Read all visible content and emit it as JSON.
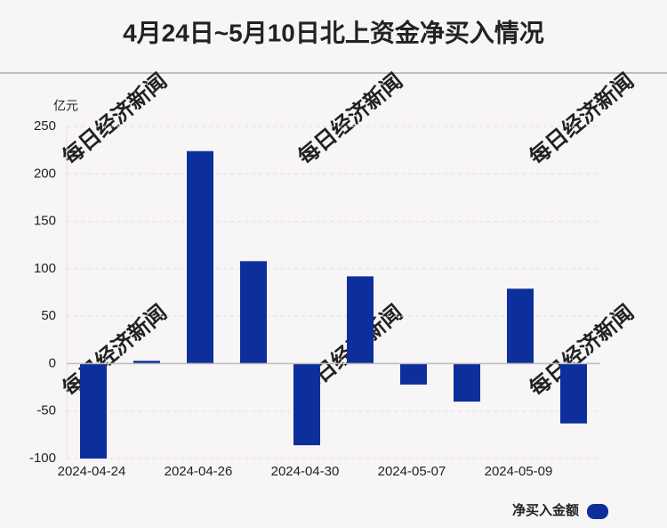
{
  "chart_data": {
    "type": "bar",
    "title": "4月24日~5月10日北上资金净买入情况",
    "y_unit": "亿元",
    "watermark": "每日经济新闻",
    "categories": [
      "2024-04-24",
      null,
      "2024-04-26",
      null,
      "2024-04-30",
      null,
      "2024-05-07",
      null,
      "2024-05-09",
      null
    ],
    "series": [
      {
        "name": "净买入金额",
        "color": "#0d2f9b",
        "values": [
          -100,
          3,
          224,
          108,
          -86,
          92,
          -22,
          -40,
          79,
          -63
        ]
      }
    ],
    "ylim": [
      -100,
      250
    ],
    "yticks": [
      -100,
      -50,
      0,
      50,
      100,
      150,
      200,
      250
    ],
    "grid": true
  }
}
